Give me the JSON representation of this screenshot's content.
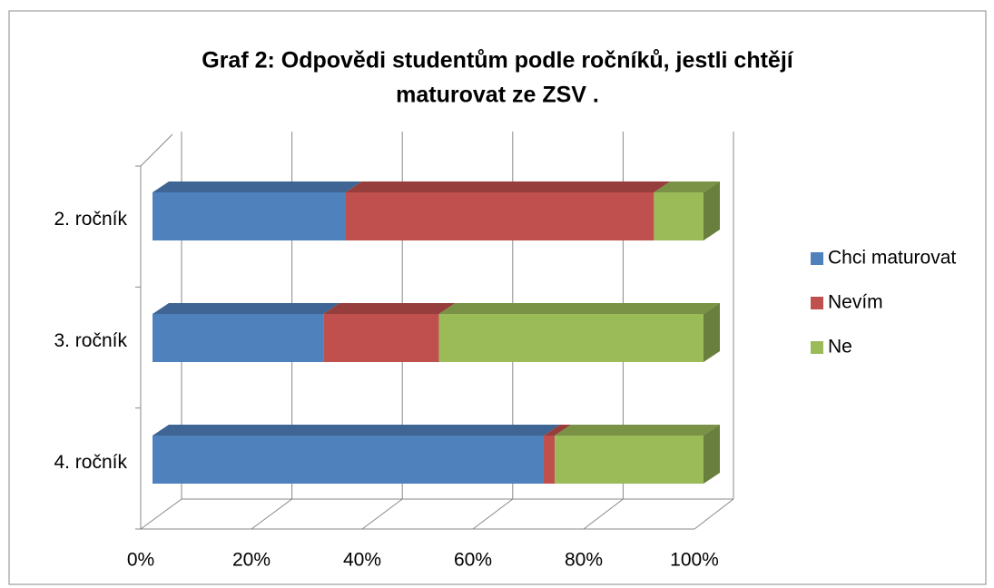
{
  "chart_data": {
    "type": "bar3d_stacked_percent_horizontal",
    "title": [
      "Graf 2: Odpovědi studentům podle ročníků, jestli chtějí",
      "maturovat ze ZSV ."
    ],
    "categories": [
      "2. ročník",
      "3. ročník",
      "4. ročník"
    ],
    "series": [
      {
        "name": "Chci maturovat",
        "color": "#4f81bd",
        "values": [
          35,
          31,
          71
        ]
      },
      {
        "name": "Nevím",
        "color": "#c0504d",
        "values": [
          56,
          21,
          2
        ]
      },
      {
        "name": "Ne",
        "color": "#9bbb59",
        "values": [
          9,
          48,
          27
        ]
      }
    ],
    "xlim": [
      0,
      100
    ],
    "xticks": [
      {
        "value": 0,
        "label": "0%"
      },
      {
        "value": 20,
        "label": "20%"
      },
      {
        "value": 40,
        "label": "40%"
      },
      {
        "value": 60,
        "label": "60%"
      },
      {
        "value": 80,
        "label": "80%"
      },
      {
        "value": 100,
        "label": "100%"
      }
    ],
    "grid": true,
    "legend": "right"
  }
}
